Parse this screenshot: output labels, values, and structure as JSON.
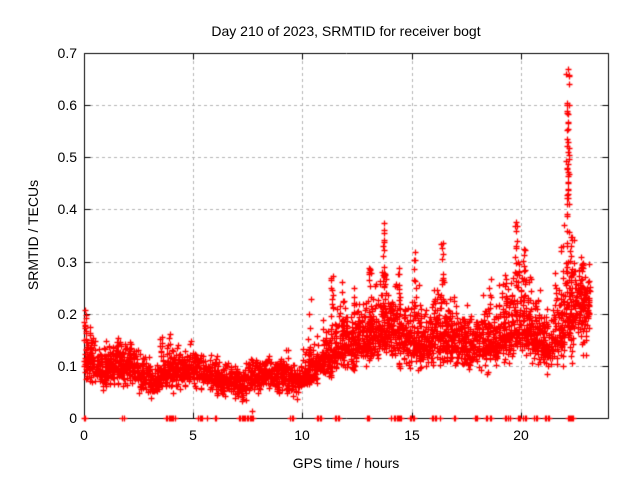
{
  "chart_data": {
    "type": "scatter",
    "title": "Day 210 of 2023, SRMTID for receiver bogt",
    "xlabel": "GPS time / hours",
    "ylabel": "SRMTID / TECUs",
    "xlim": [
      0,
      24
    ],
    "ylim": [
      0,
      0.7
    ],
    "xticks": [
      0,
      5,
      10,
      15,
      20
    ],
    "xtick_labels": [
      "0",
      "5",
      "10",
      "15",
      "20"
    ],
    "yticks": [
      0,
      0.1,
      0.2,
      0.3,
      0.4,
      0.5,
      0.6,
      0.7
    ],
    "ytick_labels": [
      "0",
      "0.1",
      "0.2",
      "0.3",
      "0.4",
      "0.5",
      "0.6",
      "0.7"
    ],
    "grid": true,
    "legend": "none",
    "marker": "plus",
    "marker_color": "#ff0000",
    "grid_color": "#b4b4b4",
    "axis_color": "#000000",
    "seed": 42,
    "band_segments": [
      [
        0.0,
        0.5,
        0.06,
        0.19,
        0.11,
        85
      ],
      [
        0.5,
        1.0,
        0.05,
        0.15,
        0.09,
        80
      ],
      [
        1.0,
        1.5,
        0.05,
        0.16,
        0.1,
        80
      ],
      [
        1.5,
        2.0,
        0.05,
        0.16,
        0.1,
        80
      ],
      [
        2.0,
        2.5,
        0.05,
        0.15,
        0.1,
        80
      ],
      [
        2.5,
        3.0,
        0.04,
        0.13,
        0.085,
        75
      ],
      [
        3.0,
        3.5,
        0.03,
        0.12,
        0.07,
        70
      ],
      [
        3.5,
        4.0,
        0.04,
        0.15,
        0.09,
        80
      ],
      [
        4.0,
        4.5,
        0.04,
        0.15,
        0.09,
        80
      ],
      [
        4.5,
        5.0,
        0.05,
        0.14,
        0.09,
        75
      ],
      [
        5.0,
        5.5,
        0.04,
        0.14,
        0.09,
        75
      ],
      [
        5.5,
        6.0,
        0.04,
        0.13,
        0.08,
        70
      ],
      [
        6.0,
        6.5,
        0.03,
        0.12,
        0.075,
        70
      ],
      [
        6.5,
        7.0,
        0.03,
        0.12,
        0.07,
        70
      ],
      [
        7.0,
        7.5,
        0.02,
        0.11,
        0.065,
        65
      ],
      [
        7.5,
        8.0,
        0.04,
        0.13,
        0.08,
        75
      ],
      [
        8.0,
        8.5,
        0.05,
        0.13,
        0.08,
        75
      ],
      [
        8.5,
        9.0,
        0.04,
        0.13,
        0.08,
        75
      ],
      [
        9.0,
        9.5,
        0.04,
        0.13,
        0.08,
        75
      ],
      [
        9.5,
        10.0,
        0.03,
        0.12,
        0.075,
        70
      ],
      [
        10.0,
        10.5,
        0.05,
        0.15,
        0.09,
        75
      ],
      [
        10.5,
        11.0,
        0.06,
        0.16,
        0.1,
        75
      ],
      [
        11.0,
        11.5,
        0.07,
        0.22,
        0.12,
        80
      ],
      [
        11.5,
        12.0,
        0.08,
        0.25,
        0.14,
        85
      ],
      [
        12.0,
        12.5,
        0.08,
        0.24,
        0.14,
        85
      ],
      [
        12.5,
        13.0,
        0.09,
        0.25,
        0.15,
        85
      ],
      [
        13.0,
        13.5,
        0.09,
        0.28,
        0.16,
        90
      ],
      [
        13.5,
        14.0,
        0.1,
        0.33,
        0.18,
        90
      ],
      [
        14.0,
        14.5,
        0.09,
        0.28,
        0.16,
        90
      ],
      [
        14.5,
        15.0,
        0.08,
        0.24,
        0.15,
        85
      ],
      [
        15.0,
        15.5,
        0.08,
        0.28,
        0.15,
        85
      ],
      [
        15.5,
        16.0,
        0.08,
        0.24,
        0.14,
        85
      ],
      [
        16.0,
        16.5,
        0.09,
        0.3,
        0.16,
        85
      ],
      [
        16.5,
        17.0,
        0.08,
        0.26,
        0.15,
        85
      ],
      [
        17.0,
        17.5,
        0.08,
        0.23,
        0.14,
        80
      ],
      [
        17.5,
        18.0,
        0.08,
        0.23,
        0.135,
        80
      ],
      [
        18.0,
        18.5,
        0.08,
        0.25,
        0.14,
        80
      ],
      [
        18.5,
        19.0,
        0.09,
        0.26,
        0.15,
        85
      ],
      [
        19.0,
        19.5,
        0.09,
        0.3,
        0.16,
        85
      ],
      [
        19.5,
        20.0,
        0.1,
        0.34,
        0.17,
        90
      ],
      [
        20.0,
        20.5,
        0.1,
        0.3,
        0.17,
        90
      ],
      [
        20.5,
        21.0,
        0.09,
        0.27,
        0.15,
        85
      ],
      [
        21.0,
        21.5,
        0.08,
        0.25,
        0.14,
        80
      ],
      [
        21.5,
        22.0,
        0.09,
        0.31,
        0.16,
        85
      ],
      [
        22.0,
        22.5,
        0.1,
        0.38,
        0.2,
        90
      ],
      [
        22.5,
        23.0,
        0.1,
        0.31,
        0.22,
        90
      ],
      [
        23.0,
        23.2,
        0.14,
        0.3,
        0.22,
        30
      ]
    ],
    "spike_columns": [
      [
        0.07,
        0.1,
        0.21,
        12
      ],
      [
        1.52,
        0.1,
        0.17,
        8
      ],
      [
        2.15,
        0.09,
        0.16,
        7
      ],
      [
        3.55,
        0.08,
        0.16,
        7
      ],
      [
        3.95,
        0.08,
        0.17,
        8
      ],
      [
        4.85,
        0.07,
        0.15,
        6
      ],
      [
        6.05,
        0.05,
        0.12,
        5
      ],
      [
        7.05,
        0.04,
        0.13,
        6
      ],
      [
        8.45,
        0.06,
        0.15,
        6
      ],
      [
        9.3,
        0.05,
        0.14,
        6
      ],
      [
        10.33,
        0.06,
        0.25,
        18
      ],
      [
        10.95,
        0.07,
        0.2,
        10
      ],
      [
        11.35,
        0.09,
        0.28,
        16
      ],
      [
        11.85,
        0.1,
        0.27,
        14
      ],
      [
        12.4,
        0.1,
        0.26,
        14
      ],
      [
        13.1,
        0.1,
        0.3,
        18
      ],
      [
        13.75,
        0.12,
        0.375,
        26
      ],
      [
        14.4,
        0.1,
        0.3,
        16
      ],
      [
        15.15,
        0.1,
        0.32,
        14
      ],
      [
        16.4,
        0.12,
        0.335,
        16
      ],
      [
        17.0,
        0.1,
        0.26,
        10
      ],
      [
        18.6,
        0.1,
        0.27,
        10
      ],
      [
        19.3,
        0.1,
        0.3,
        12
      ],
      [
        19.8,
        0.12,
        0.376,
        20
      ],
      [
        20.15,
        0.12,
        0.33,
        14
      ],
      [
        21.9,
        0.1,
        0.35,
        16
      ],
      [
        22.15,
        0.34,
        0.672,
        30
      ],
      [
        22.3,
        0.1,
        0.35,
        18
      ],
      [
        22.8,
        0.12,
        0.31,
        20
      ]
    ],
    "zero_clusters": [
      [
        0.02,
        2
      ],
      [
        1.72,
        2
      ],
      [
        1.82,
        2
      ],
      [
        3.8,
        2
      ],
      [
        3.88,
        3
      ],
      [
        3.97,
        2
      ],
      [
        4.07,
        2
      ],
      [
        4.17,
        2
      ],
      [
        5.22,
        2
      ],
      [
        5.32,
        2
      ],
      [
        5.42,
        2
      ],
      [
        5.62,
        2
      ],
      [
        6.03,
        3
      ],
      [
        7.15,
        4
      ],
      [
        7.25,
        5
      ],
      [
        7.33,
        4
      ],
      [
        7.5,
        6
      ],
      [
        7.62,
        4
      ],
      [
        7.72,
        3
      ],
      [
        9.42,
        2
      ],
      [
        9.55,
        2
      ],
      [
        10.7,
        2
      ],
      [
        10.82,
        2
      ],
      [
        11.55,
        2
      ],
      [
        11.68,
        2
      ],
      [
        12.98,
        4
      ],
      [
        13.08,
        5
      ],
      [
        14.08,
        2
      ],
      [
        14.2,
        2
      ],
      [
        14.38,
        4
      ],
      [
        14.5,
        5
      ],
      [
        14.98,
        2
      ],
      [
        15.07,
        2
      ],
      [
        15.95,
        2
      ],
      [
        16.1,
        2
      ],
      [
        16.3,
        2
      ],
      [
        16.95,
        3
      ],
      [
        17.88,
        2
      ],
      [
        18.0,
        2
      ],
      [
        18.42,
        2
      ],
      [
        18.6,
        2
      ],
      [
        19.32,
        2
      ],
      [
        19.42,
        2
      ],
      [
        19.52,
        2
      ],
      [
        19.88,
        4
      ],
      [
        19.97,
        4
      ],
      [
        20.1,
        2
      ],
      [
        20.2,
        2
      ],
      [
        20.62,
        2
      ],
      [
        20.75,
        2
      ],
      [
        21.15,
        2
      ],
      [
        21.28,
        2
      ],
      [
        22.18,
        5
      ],
      [
        22.28,
        6
      ],
      [
        22.38,
        5
      ]
    ],
    "extra_points": [
      [
        7.71,
        0.014
      ],
      [
        0.05,
        0.208
      ],
      [
        22.17,
        0.67
      ],
      [
        22.2,
        0.658
      ],
      [
        22.22,
        0.64
      ],
      [
        13.72,
        0.374
      ],
      [
        13.76,
        0.36
      ],
      [
        19.78,
        0.376
      ],
      [
        16.42,
        0.335
      ],
      [
        15.15,
        0.318
      ],
      [
        22.1,
        0.6
      ],
      [
        22.13,
        0.585
      ],
      [
        22.18,
        0.565
      ],
      [
        22.16,
        0.53
      ],
      [
        22.2,
        0.505
      ],
      [
        22.12,
        0.48
      ],
      [
        22.19,
        0.452
      ],
      [
        22.15,
        0.43
      ],
      [
        22.21,
        0.41
      ],
      [
        22.14,
        0.392
      ]
    ]
  }
}
